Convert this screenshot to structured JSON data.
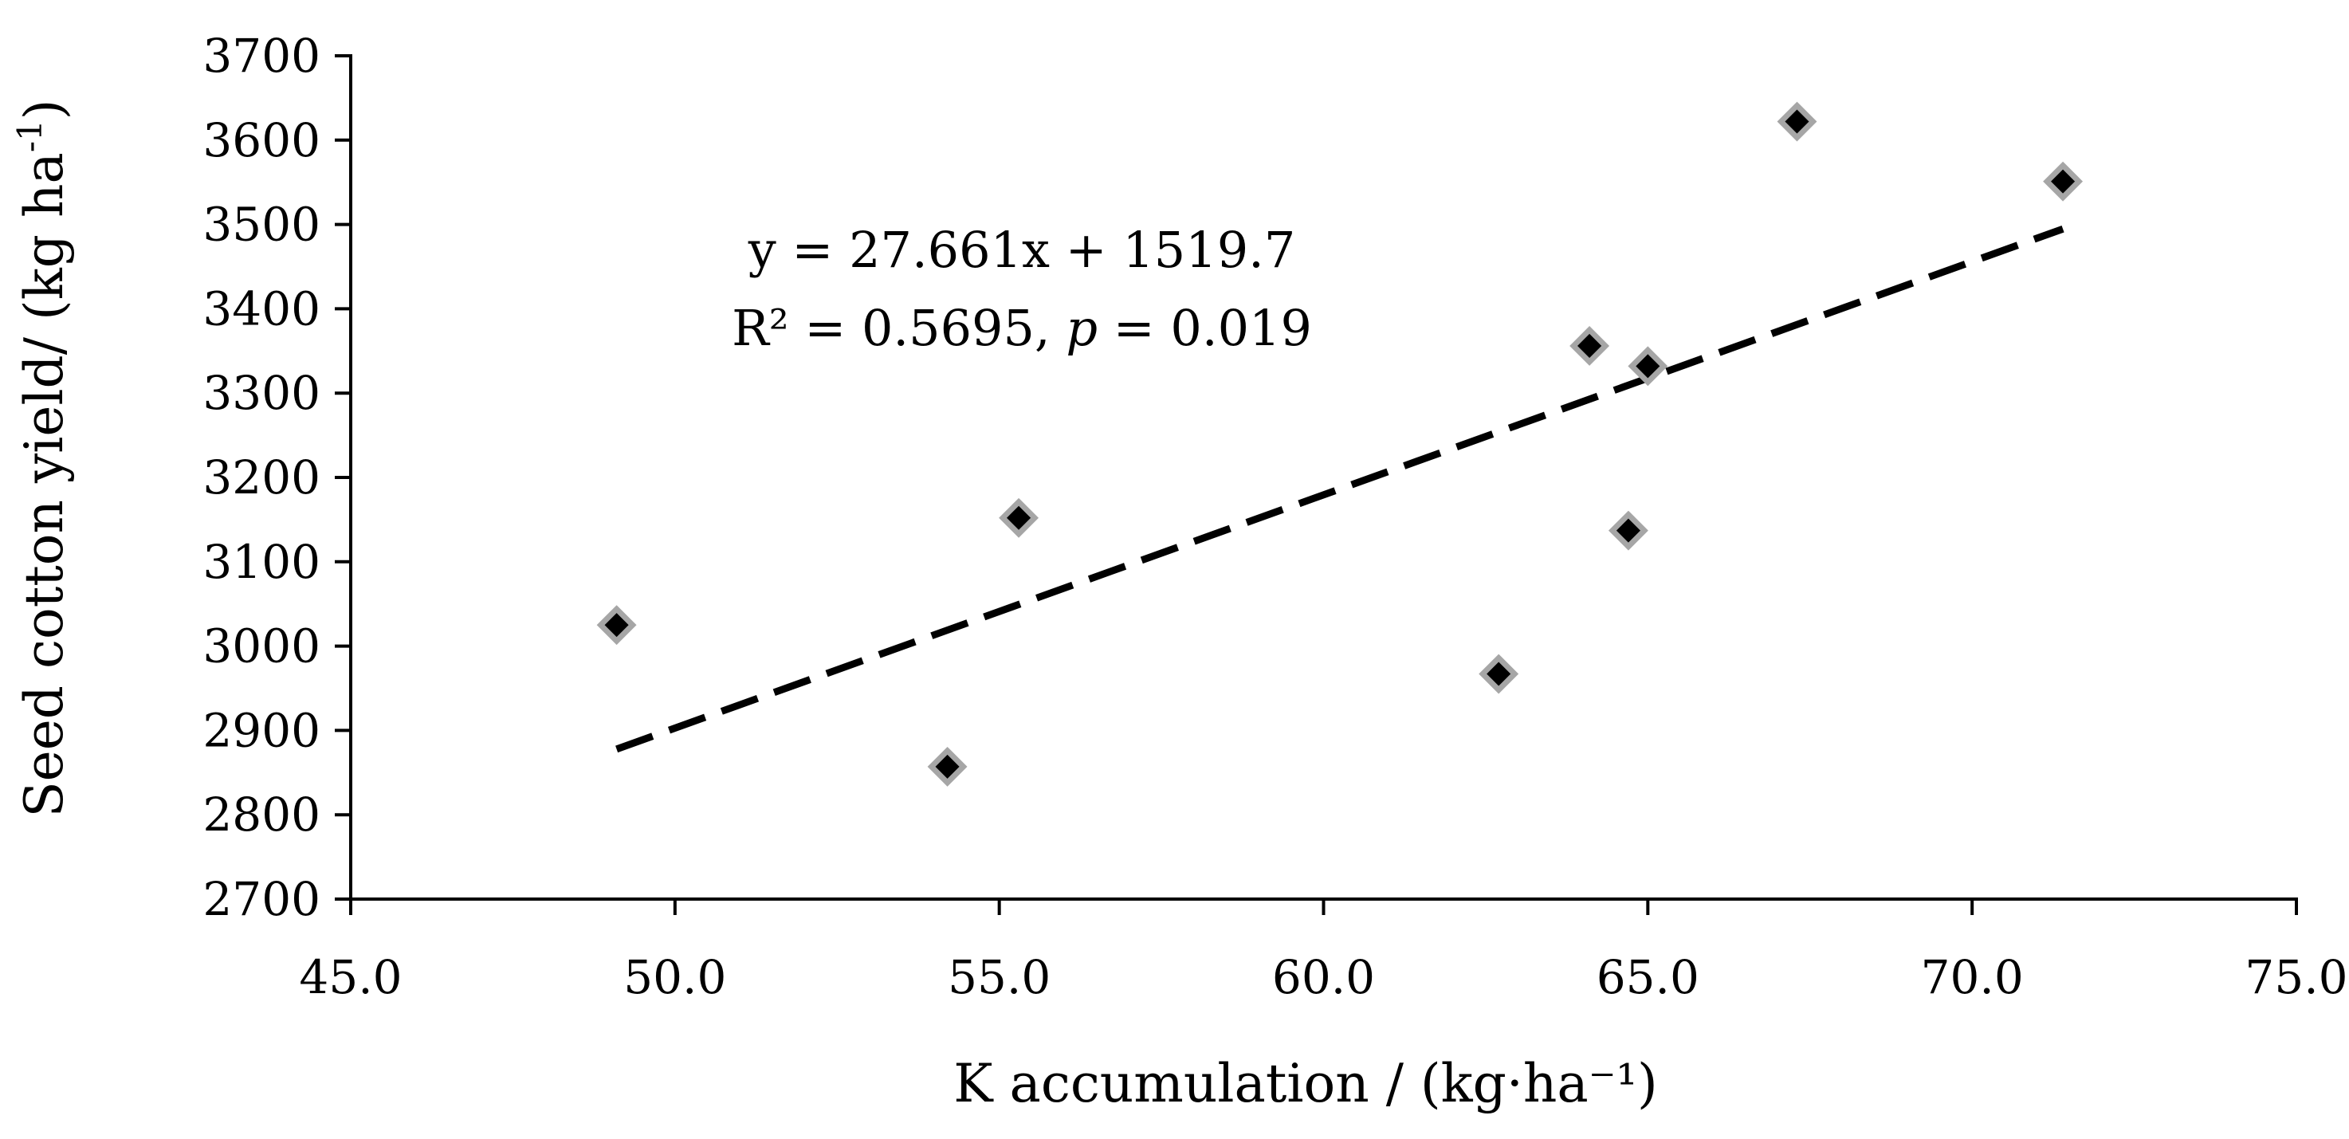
{
  "chart_data": {
    "type": "scatter",
    "title": "",
    "xlabel": "K accumulation / (kg·ha⁻¹)",
    "ylabel_main": "Seed cotton yield/ (kg ha",
    "ylabel_sup": "-1",
    "ylabel_close": ")",
    "xlim": [
      45.0,
      75.0
    ],
    "ylim": [
      2700,
      3700
    ],
    "x_ticks": [
      45.0,
      50.0,
      55.0,
      60.0,
      65.0,
      70.0,
      75.0
    ],
    "x_tick_labels": [
      "45.0",
      "50.0",
      "55.0",
      "60.0",
      "65.0",
      "70.0",
      "75.0"
    ],
    "y_ticks": [
      2700,
      2800,
      2900,
      3000,
      3100,
      3200,
      3300,
      3400,
      3500,
      3600,
      3700
    ],
    "y_tick_labels": [
      "2700",
      "2800",
      "2900",
      "3000",
      "3100",
      "3200",
      "3300",
      "3400",
      "3500",
      "3600",
      "3700"
    ],
    "points": [
      {
        "x": 49.1,
        "y": 3025
      },
      {
        "x": 54.2,
        "y": 2857
      },
      {
        "x": 55.3,
        "y": 3152
      },
      {
        "x": 62.7,
        "y": 2967
      },
      {
        "x": 64.1,
        "y": 3356
      },
      {
        "x": 64.7,
        "y": 3137
      },
      {
        "x": 65.0,
        "y": 3332
      },
      {
        "x": 67.3,
        "y": 3622
      },
      {
        "x": 71.4,
        "y": 3551
      }
    ],
    "trendline": {
      "slope": 27.661,
      "intercept": 1519.7,
      "x_start": 49.1,
      "x_end": 71.4,
      "style": "dashed"
    },
    "annotation": {
      "equation": "y = 27.661x + 1519.7",
      "r2_prefix": "R² = 0.5695, ",
      "p_symbol": "p",
      "p_rest": " = 0.019"
    },
    "colors": {
      "marker_fill": "#000000",
      "marker_edge": "#a6a6a6",
      "trendline": "#000000",
      "axis": "#000000"
    }
  }
}
